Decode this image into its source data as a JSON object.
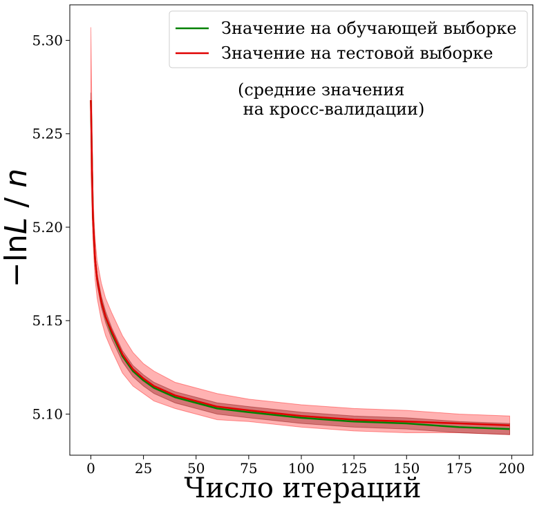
{
  "chart_data": {
    "type": "line",
    "xlabel": "Число итераций",
    "ylabel_prefix": "−ln",
    "ylabel_L": "L",
    "ylabel_sep": " / ",
    "ylabel_n": "n",
    "xlim": [
      -10,
      210
    ],
    "ylim": [
      5.078,
      5.319
    ],
    "xticks": [
      0,
      25,
      50,
      75,
      100,
      125,
      150,
      175,
      200
    ],
    "yticks": [
      5.1,
      5.15,
      5.2,
      5.25,
      5.3
    ],
    "ytick_labels": [
      "5.10",
      "5.15",
      "5.20",
      "5.25",
      "5.30"
    ],
    "grid": false,
    "legend_position": "top-right",
    "annotation_line1": "(средние значения",
    "annotation_line2": " на кросс-валидации)",
    "series": [
      {
        "name": "Значение на обучающей выборке",
        "color": "#008000",
        "band_color": "#800000",
        "x": [
          0,
          1,
          2,
          3,
          5,
          7,
          10,
          15,
          20,
          25,
          30,
          40,
          50,
          60,
          75,
          100,
          125,
          150,
          175,
          199
        ],
        "values": [
          5.268,
          5.205,
          5.183,
          5.172,
          5.16,
          5.152,
          5.143,
          5.131,
          5.123,
          5.118,
          5.114,
          5.109,
          5.106,
          5.103,
          5.101,
          5.098,
          5.096,
          5.095,
          5.093,
          5.092
        ],
        "band": [
          0.004,
          0.0035,
          0.0032,
          0.003,
          0.003,
          0.003,
          0.003,
          0.003,
          0.003,
          0.003,
          0.003,
          0.003,
          0.003,
          0.003,
          0.003,
          0.003,
          0.003,
          0.003,
          0.003,
          0.003
        ]
      },
      {
        "name": "Значение на тестовой выборке",
        "color": "#e00000",
        "band_color": "#ff0000",
        "x": [
          0,
          1,
          2,
          3,
          5,
          7,
          10,
          15,
          20,
          25,
          30,
          40,
          50,
          60,
          75,
          100,
          125,
          150,
          175,
          199
        ],
        "values": [
          5.268,
          5.205,
          5.183,
          5.172,
          5.16,
          5.152,
          5.144,
          5.132,
          5.124,
          5.119,
          5.115,
          5.11,
          5.107,
          5.104,
          5.102,
          5.099,
          5.097,
          5.096,
          5.095,
          5.094
        ],
        "band": [
          0.039,
          0.012,
          0.011,
          0.01,
          0.01,
          0.01,
          0.01,
          0.01,
          0.009,
          0.008,
          0.008,
          0.007,
          0.007,
          0.007,
          0.006,
          0.006,
          0.006,
          0.006,
          0.005,
          0.005
        ]
      }
    ]
  }
}
